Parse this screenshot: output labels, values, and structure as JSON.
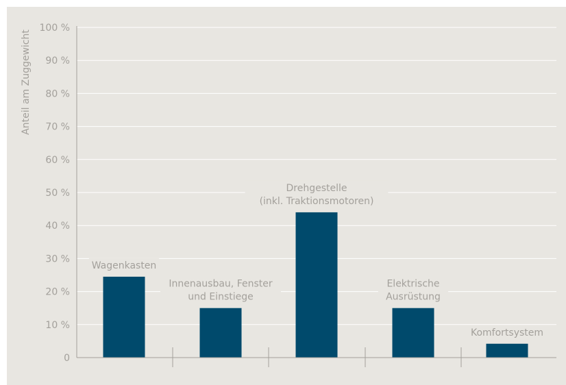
{
  "chart_data": {
    "type": "bar",
    "ylabel": "Anteil am Zuggewicht",
    "ylim": [
      0,
      100
    ],
    "yticks": [
      0,
      10,
      20,
      30,
      40,
      50,
      60,
      70,
      80,
      90,
      100
    ],
    "ytick_labels": [
      "0",
      "10 %",
      "20 %",
      "30 %",
      "40 %",
      "50 %",
      "60 %",
      "70 %",
      "80 %",
      "90 %",
      "100 %"
    ],
    "grid": true,
    "categories": [
      {
        "lines": [
          "Wagenkasten"
        ]
      },
      {
        "lines": [
          "Innenausbau, Fenster",
          "und Einstiege"
        ]
      },
      {
        "lines": [
          "Drehgestelle",
          "(inkl. Traktionsmotoren)"
        ]
      },
      {
        "lines": [
          "Elektrische",
          "Ausrüstung"
        ]
      },
      {
        "lines": [
          "Komfortsystem"
        ]
      }
    ],
    "values": [
      24.5,
      15,
      44,
      15,
      4.2
    ],
    "colors": {
      "bar": "#004a6c",
      "grid": "#ffffff",
      "axis": "#a3a09b",
      "text": "#a3a09b",
      "background": "#e8e6e1"
    }
  }
}
